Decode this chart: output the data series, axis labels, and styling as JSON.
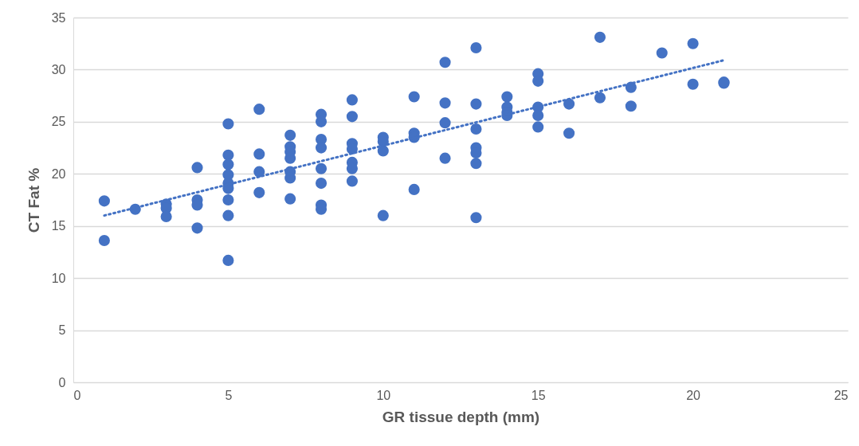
{
  "chart_data": {
    "type": "scatter",
    "xlabel": "GR tissue depth (mm)",
    "ylabel": "CT Fat %",
    "xlim": [
      0,
      25
    ],
    "ylim": [
      0,
      35
    ],
    "xticks": [
      0,
      5,
      10,
      15,
      20,
      25
    ],
    "yticks": [
      0,
      5,
      10,
      15,
      20,
      25,
      30,
      35
    ],
    "grid": "y",
    "series": [
      {
        "marker": "circle",
        "color": "#4472c4",
        "x": [
          1,
          1,
          2,
          3,
          3,
          3,
          4,
          4,
          4,
          4,
          5,
          5,
          5,
          5,
          5,
          5,
          5,
          5,
          5,
          6,
          6,
          6,
          6,
          7,
          7,
          7,
          7,
          7,
          7,
          7,
          8,
          8,
          8,
          8,
          8,
          8,
          8,
          8,
          9,
          9,
          9,
          9,
          9,
          9,
          9,
          10,
          10,
          10,
          10,
          11,
          11,
          11,
          11,
          12,
          12,
          12,
          12,
          13,
          13,
          13,
          13,
          13,
          13,
          13,
          14,
          14,
          14,
          14,
          15,
          15,
          15,
          15,
          15,
          16,
          16,
          17,
          17,
          18,
          18,
          19,
          20,
          20,
          21,
          21
        ],
        "values": [
          17.4,
          13.6,
          16.6,
          17.1,
          16.7,
          15.9,
          20.6,
          17.5,
          17.0,
          14.8,
          24.8,
          21.8,
          20.9,
          19.9,
          19.1,
          18.6,
          17.5,
          16.0,
          11.7,
          26.2,
          21.9,
          20.2,
          18.2,
          23.7,
          22.6,
          22.1,
          21.5,
          20.2,
          19.6,
          17.6,
          25.7,
          25.0,
          23.3,
          22.5,
          20.5,
          19.1,
          17.0,
          16.6,
          27.1,
          25.5,
          22.9,
          22.4,
          21.1,
          20.5,
          19.3,
          23.5,
          23.1,
          22.2,
          16.0,
          27.4,
          23.9,
          23.5,
          18.5,
          30.7,
          26.8,
          24.9,
          21.5,
          32.1,
          26.7,
          24.3,
          22.5,
          22.0,
          21.0,
          15.8,
          27.4,
          26.4,
          25.9,
          25.6,
          29.6,
          28.9,
          26.4,
          25.6,
          24.5,
          26.7,
          23.9,
          33.1,
          27.3,
          28.3,
          26.5,
          31.6,
          32.5,
          28.6,
          28.8,
          28.7
        ]
      },
      {
        "type": "line",
        "color": "#4472c4",
        "line_style": "dotted",
        "x": [
          1,
          21
        ],
        "values": [
          16.0,
          30.9
        ]
      }
    ]
  }
}
